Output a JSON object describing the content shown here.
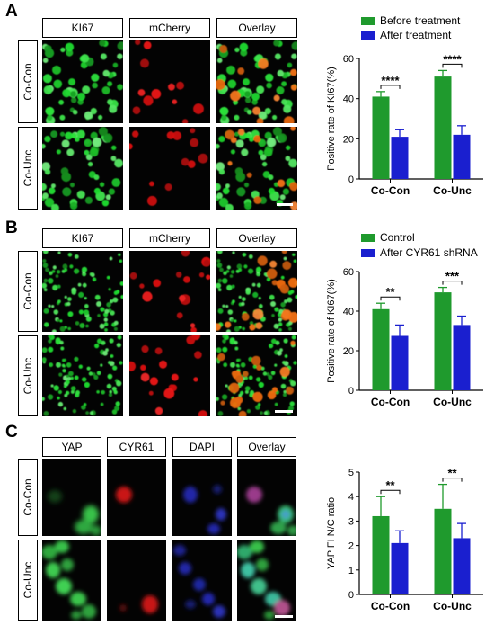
{
  "colors": {
    "green": "#1f9a2d",
    "blue": "#1a1fcf"
  },
  "panels": [
    {
      "letter": "A",
      "headers": [
        "KI67",
        "mCherry",
        "Overlay"
      ],
      "rows": [
        "Co-Con",
        "Co-Unc"
      ],
      "legend": [
        "Before treatment",
        "After treatment"
      ]
    },
    {
      "letter": "B",
      "headers": [
        "KI67",
        "mCherry",
        "Overlay"
      ],
      "rows": [
        "Co-Con",
        "Co-Unc"
      ],
      "legend": [
        "Control",
        "After CYR61 shRNA"
      ]
    },
    {
      "letter": "C",
      "headers": [
        "YAP",
        "CYR61",
        "DAPI",
        "Overlay"
      ],
      "rows": [
        "Co-Con",
        "Co-Unc"
      ],
      "legend": []
    }
  ],
  "chart_data": [
    {
      "type": "bar",
      "categories": [
        "Co-Con",
        "Co-Unc"
      ],
      "series": [
        {
          "name": "Before treatment",
          "values": [
            41,
            51
          ],
          "errors": [
            2.5,
            3
          ]
        },
        {
          "name": "After treatment",
          "values": [
            21,
            22
          ],
          "errors": [
            3.5,
            4.5
          ]
        }
      ],
      "ylabel": "Positive rate of KI67(%)",
      "ylim": [
        0,
        60
      ],
      "yticks": [
        0,
        20,
        40,
        60
      ],
      "significance": [
        "****",
        "****"
      ]
    },
    {
      "type": "bar",
      "categories": [
        "Co-Con",
        "Co-Unc"
      ],
      "series": [
        {
          "name": "Control",
          "values": [
            41,
            49.5
          ],
          "errors": [
            3,
            2.5
          ]
        },
        {
          "name": "After CYR61 shRNA",
          "values": [
            27.5,
            33
          ],
          "errors": [
            5.5,
            4.5
          ]
        }
      ],
      "ylabel": "Positive rate of KI67(%)",
      "ylim": [
        0,
        60
      ],
      "yticks": [
        0,
        20,
        40,
        60
      ],
      "significance": [
        "**",
        "***"
      ]
    },
    {
      "type": "bar",
      "categories": [
        "Co-Con",
        "Co-Unc"
      ],
      "series": [
        {
          "name": "",
          "values": [
            3.2,
            3.5
          ],
          "errors": [
            0.8,
            1.0
          ]
        },
        {
          "name": "",
          "values": [
            2.1,
            2.3
          ],
          "errors": [
            0.5,
            0.6
          ]
        }
      ],
      "ylabel": "YAP FI N/C ratio",
      "ylim": [
        0,
        5
      ],
      "yticks": [
        0,
        1,
        2,
        3,
        4,
        5
      ],
      "significance": [
        "**",
        "**"
      ]
    }
  ]
}
